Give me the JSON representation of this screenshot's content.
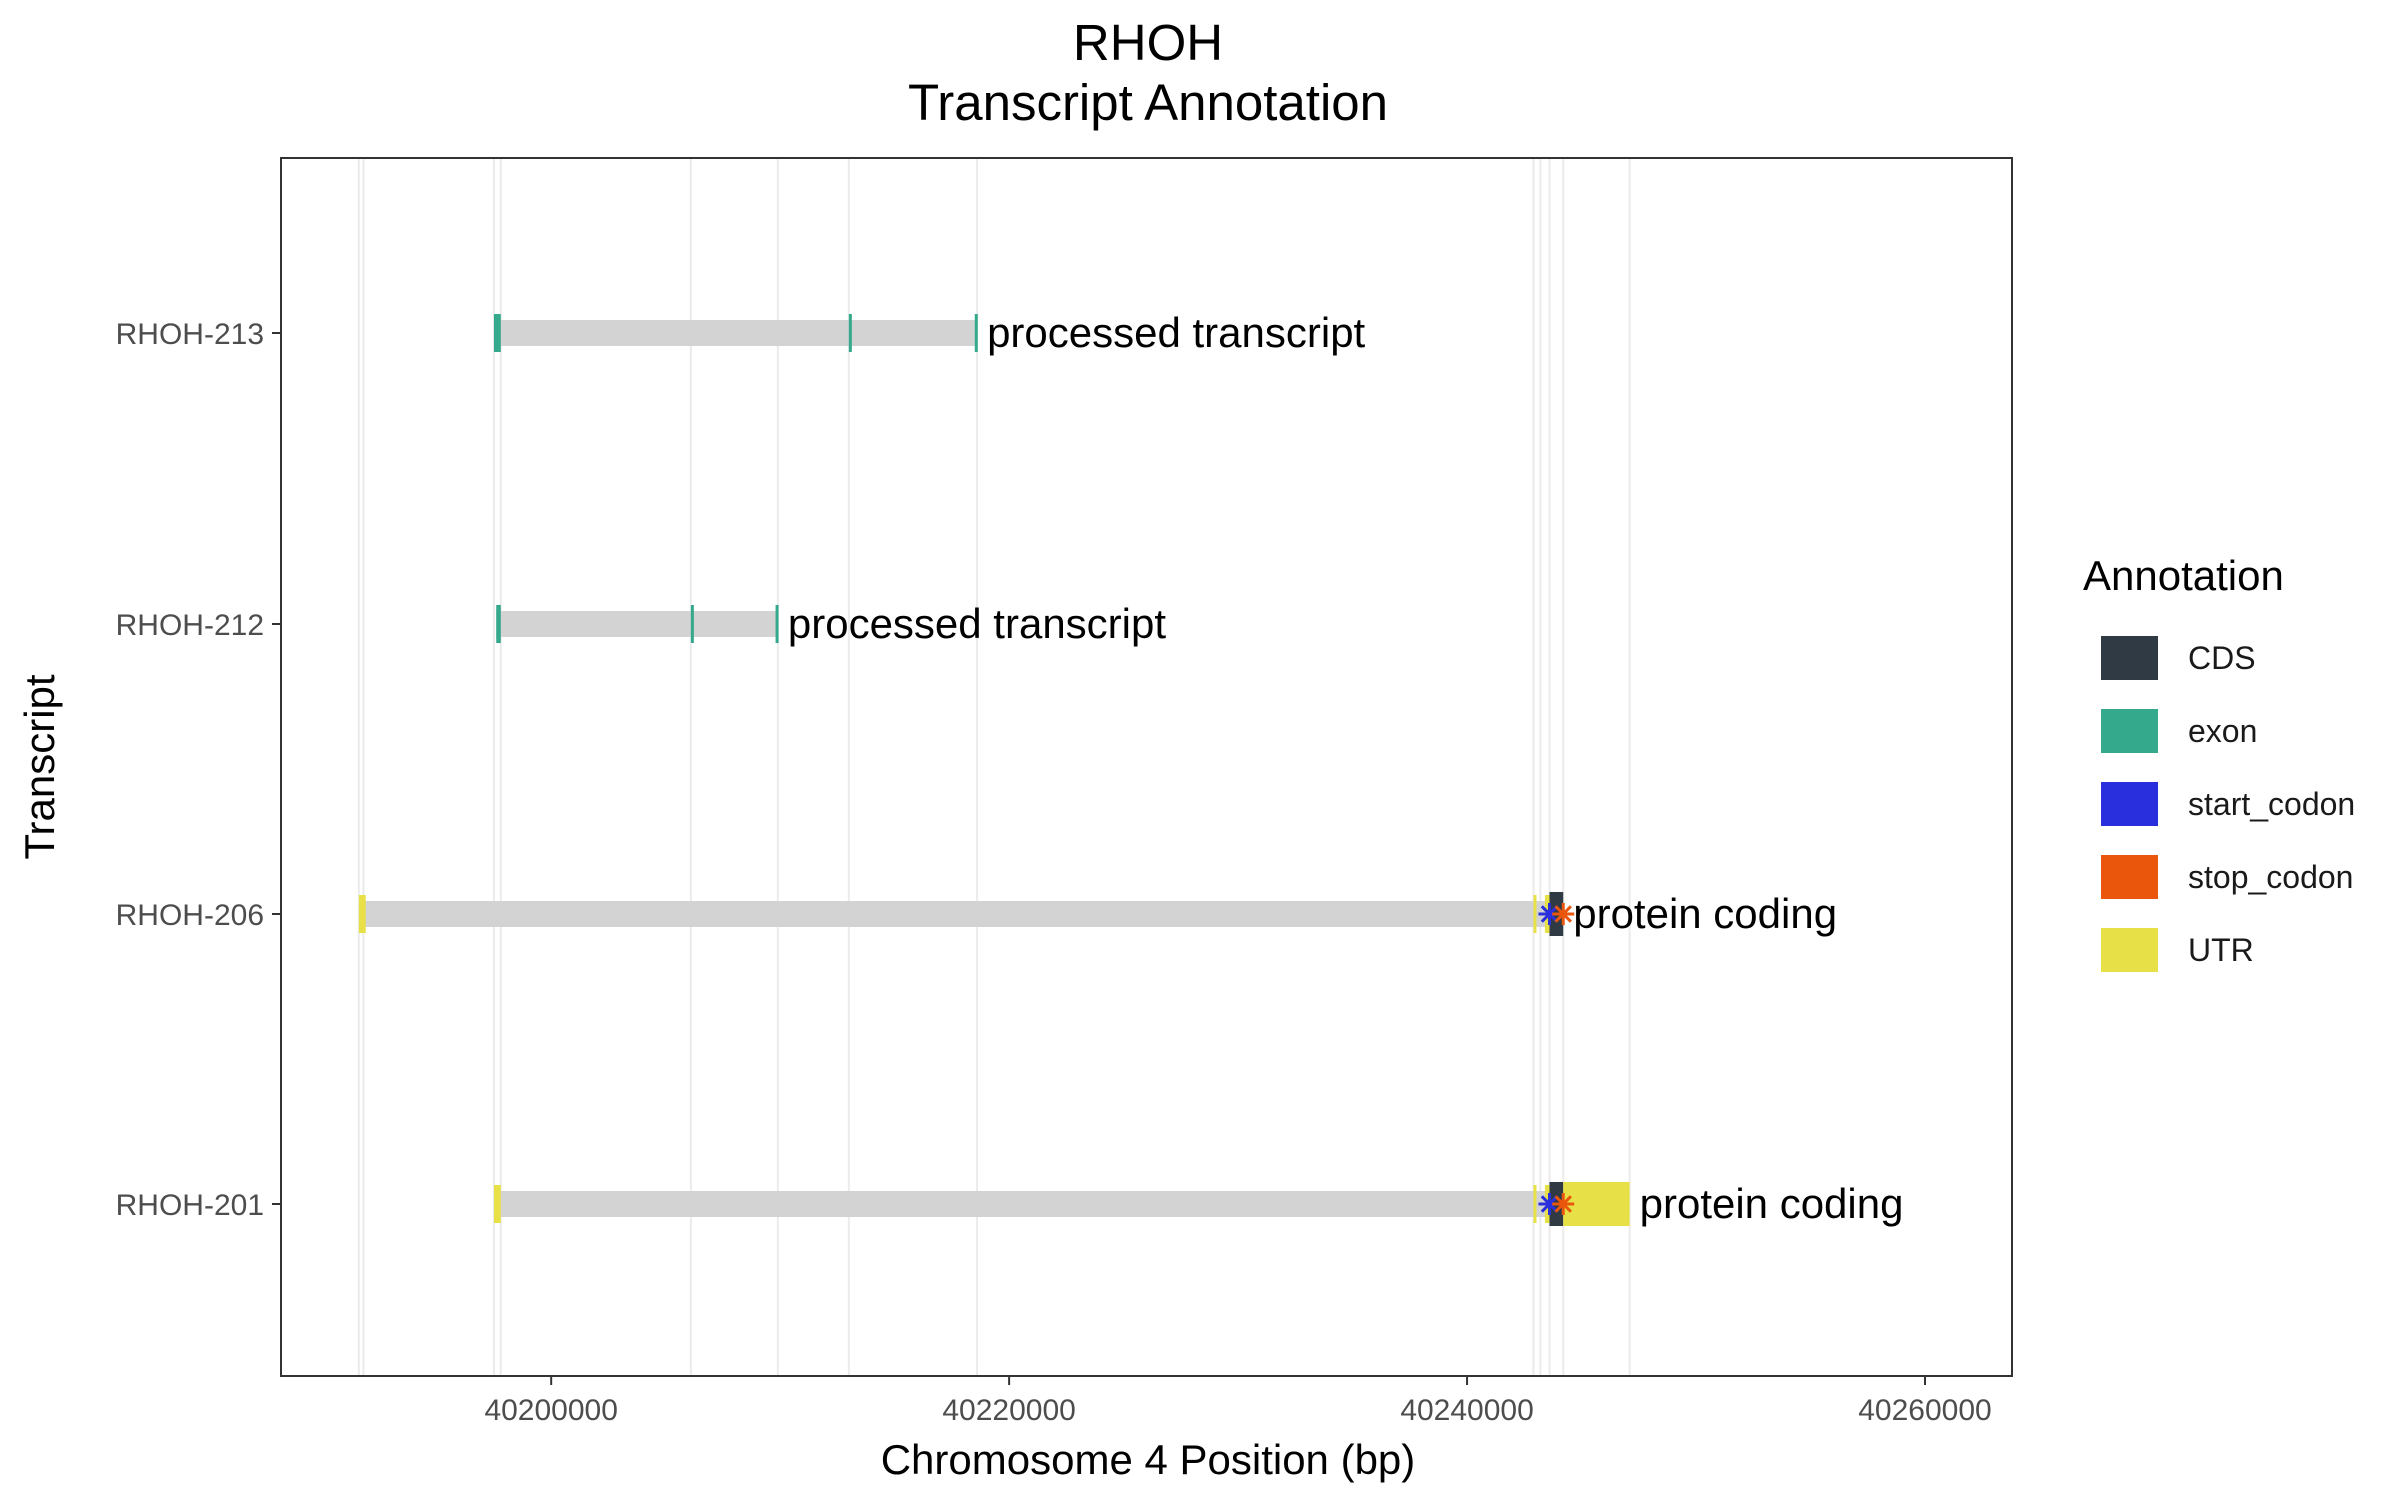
{
  "chart_data": {
    "type": "gene-track",
    "title": "RHOH",
    "subtitle": "Transcript Annotation",
    "xlabel": "Chromosome 4 Position (bp)",
    "ylabel": "Transcript",
    "xlim": [
      40188200,
      40263800
    ],
    "x_ticks": [
      40200000,
      40220000,
      40240000,
      40260000
    ],
    "x_tick_labels": [
      "40200000",
      "40220000",
      "40240000",
      "40260000"
    ],
    "legend": {
      "title": "Annotation",
      "placement": "right",
      "items": [
        {
          "key": "CDS",
          "label": "CDS",
          "color": "#2f3a45"
        },
        {
          "key": "exon",
          "label": "exon",
          "color": "#34a98b"
        },
        {
          "key": "start_codon",
          "label": "start_codon",
          "color": "#2a2fde"
        },
        {
          "key": "stop_codon",
          "label": "stop_codon",
          "color": "#ea560c"
        },
        {
          "key": "UTR",
          "label": "UTR",
          "color": "#e8e047"
        }
      ]
    },
    "intron_color": "#d3d3d3",
    "grid_x_positions": [
      40191600,
      40191800,
      40197500,
      40197800,
      40206100,
      40209900,
      40213000,
      40218600,
      40242900,
      40243200,
      40243600,
      40244200,
      40247100
    ],
    "transcripts": [
      {
        "name": "RHOH-213",
        "biotype": "processed transcript",
        "start": 40197500,
        "end": 40218600,
        "features": [
          {
            "type": "exon",
            "start": 40197500,
            "end": 40197800
          },
          {
            "type": "exon",
            "start": 40213000,
            "end": 40213100
          },
          {
            "type": "exon",
            "start": 40218500,
            "end": 40218600
          }
        ],
        "codons": []
      },
      {
        "name": "RHOH-212",
        "biotype": "processed transcript",
        "start": 40197600,
        "end": 40209900,
        "features": [
          {
            "type": "exon",
            "start": 40197600,
            "end": 40197800
          },
          {
            "type": "exon",
            "start": 40206100,
            "end": 40206200
          },
          {
            "type": "exon",
            "start": 40209800,
            "end": 40209900
          }
        ],
        "codons": []
      },
      {
        "name": "RHOH-206",
        "biotype": "protein coding",
        "start": 40191600,
        "end": 40244200,
        "features": [
          {
            "type": "UTR",
            "start": 40191600,
            "end": 40191900
          },
          {
            "type": "UTR",
            "start": 40242900,
            "end": 40243000
          },
          {
            "type": "UTR",
            "start": 40243400,
            "end": 40243600
          },
          {
            "type": "CDS",
            "start": 40243600,
            "end": 40244200
          }
        ],
        "codons": [
          {
            "type": "start_codon",
            "pos": 40243600
          },
          {
            "type": "stop_codon",
            "pos": 40244200
          }
        ]
      },
      {
        "name": "RHOH-201",
        "biotype": "protein coding",
        "start": 40197500,
        "end": 40247100,
        "features": [
          {
            "type": "UTR",
            "start": 40197500,
            "end": 40197800
          },
          {
            "type": "UTR",
            "start": 40242900,
            "end": 40243000
          },
          {
            "type": "UTR",
            "start": 40243400,
            "end": 40243600
          },
          {
            "type": "CDS",
            "start": 40243600,
            "end": 40244200
          },
          {
            "type": "UTR",
            "start": 40244200,
            "end": 40247100
          }
        ],
        "codons": [
          {
            "type": "start_codon",
            "pos": 40243600
          },
          {
            "type": "stop_codon",
            "pos": 40244200
          }
        ]
      }
    ]
  }
}
